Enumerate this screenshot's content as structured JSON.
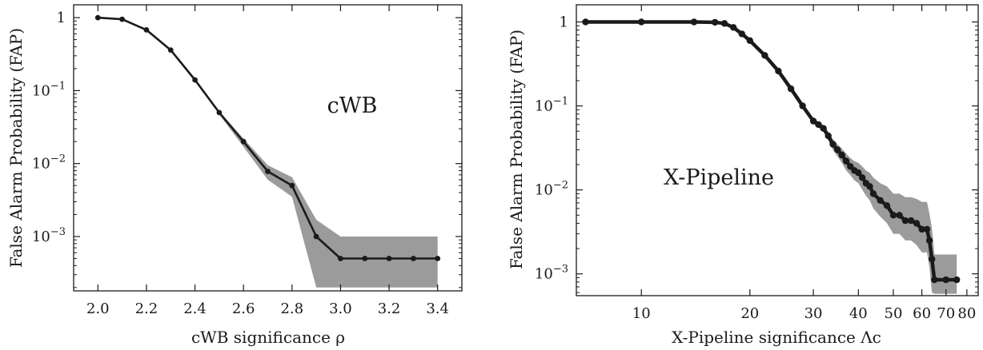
{
  "chart_data": [
    {
      "type": "line",
      "x_scale": "linear",
      "y_scale": "log",
      "xlabel": "cWB significance ρ",
      "ylabel": "False Alarm Probability (FAP)",
      "xlim": [
        1.9,
        3.5
      ],
      "ylim": [
        0.00018,
        1.5
      ],
      "x_ticks": [
        2.0,
        2.2,
        2.4,
        2.6,
        2.8,
        3.0,
        3.2,
        3.4
      ],
      "x_tick_labels": [
        "2.0",
        "2.2",
        "2.4",
        "2.6",
        "2.8",
        "3.0",
        "3.2",
        "3.4"
      ],
      "y_ticks": [
        1,
        0.1,
        0.01,
        0.001
      ],
      "y_tick_labels": [
        "1",
        "10^-1",
        "10^-2",
        "10^-3"
      ],
      "annotation": "cWB",
      "grid": false,
      "series": [
        {
          "x": [
            2.0,
            2.1,
            2.2,
            2.3,
            2.4,
            2.5,
            2.6,
            2.7,
            2.8,
            2.9,
            3.0,
            3.1,
            3.2,
            3.3,
            3.4
          ],
          "values": [
            1.0,
            0.95,
            0.68,
            0.36,
            0.14,
            0.05,
            0.02,
            0.0078,
            0.005,
            0.001,
            0.0005,
            0.0005,
            0.0005,
            0.0005,
            0.0005
          ],
          "band_upper": [
            1.0,
            0.96,
            0.7,
            0.37,
            0.145,
            0.052,
            0.022,
            0.0095,
            0.0065,
            0.0017,
            0.001,
            0.001,
            0.001,
            0.001,
            0.001
          ],
          "band_lower": [
            1.0,
            0.94,
            0.66,
            0.35,
            0.135,
            0.047,
            0.017,
            0.006,
            0.0035,
            0.0002,
            0.0002,
            0.0002,
            0.0002,
            0.0002,
            0.0002
          ]
        }
      ],
      "colors": {
        "line": "#1a1a1a",
        "band": "#9b9b9b"
      }
    },
    {
      "type": "line",
      "x_scale": "log",
      "y_scale": "log",
      "xlabel": "X-Pipeline significance Λc",
      "ylabel": "False Alarm Probability (FAP)",
      "xlim": [
        6.6,
        86
      ],
      "ylim": [
        0.00055,
        1.6
      ],
      "x_ticks": [
        10,
        20,
        30,
        40,
        50,
        60,
        70,
        80
      ],
      "x_tick_labels": [
        "10",
        "20",
        "30",
        "40",
        "50",
        "60",
        "70",
        "80"
      ],
      "y_ticks": [
        1,
        0.1,
        0.01,
        0.001
      ],
      "y_tick_labels": [
        "1",
        "10^-1",
        "10^-2",
        "10^-3"
      ],
      "annotation": "X-Pipeline",
      "grid": false,
      "series": [
        {
          "x": [
            7,
            10,
            14,
            16,
            17,
            18,
            19,
            20,
            22,
            24,
            26,
            28,
            30,
            31,
            32,
            33,
            34,
            35,
            36,
            37,
            38,
            39,
            40,
            41,
            42,
            43,
            44,
            46,
            48,
            50,
            52,
            54,
            56,
            58,
            60,
            62,
            63,
            64,
            65,
            70,
            75
          ],
          "values": [
            1.0,
            1.0,
            1.0,
            0.99,
            0.96,
            0.86,
            0.72,
            0.6,
            0.4,
            0.26,
            0.16,
            0.1,
            0.066,
            0.06,
            0.054,
            0.044,
            0.035,
            0.03,
            0.026,
            0.022,
            0.019,
            0.017,
            0.016,
            0.014,
            0.012,
            0.011,
            0.009,
            0.0075,
            0.0065,
            0.005,
            0.005,
            0.0043,
            0.0043,
            0.004,
            0.0034,
            0.0034,
            0.0025,
            0.0015,
            0.00085,
            0.00085,
            0.00085
          ],
          "band_upper": [
            1.0,
            1.0,
            1.0,
            0.995,
            0.965,
            0.87,
            0.73,
            0.61,
            0.41,
            0.27,
            0.168,
            0.106,
            0.071,
            0.065,
            0.059,
            0.049,
            0.04,
            0.035,
            0.031,
            0.027,
            0.024,
            0.022,
            0.021,
            0.019,
            0.017,
            0.016,
            0.014,
            0.012,
            0.011,
            0.009,
            0.009,
            0.0082,
            0.0082,
            0.0078,
            0.0072,
            0.0072,
            0.0052,
            0.0035,
            0.0017,
            0.0017,
            0.0017
          ],
          "band_lower": [
            1.0,
            1.0,
            1.0,
            0.985,
            0.955,
            0.85,
            0.71,
            0.59,
            0.39,
            0.25,
            0.152,
            0.094,
            0.061,
            0.055,
            0.049,
            0.039,
            0.03,
            0.025,
            0.021,
            0.017,
            0.015,
            0.013,
            0.012,
            0.01,
            0.0085,
            0.0075,
            0.006,
            0.0048,
            0.004,
            0.003,
            0.003,
            0.0025,
            0.0025,
            0.0022,
            0.0018,
            0.0018,
            0.0012,
            0.0006,
            0.00058,
            0.00058,
            0.00058
          ]
        }
      ],
      "colors": {
        "line": "#1a1a1a",
        "band": "#9b9b9b"
      }
    }
  ]
}
